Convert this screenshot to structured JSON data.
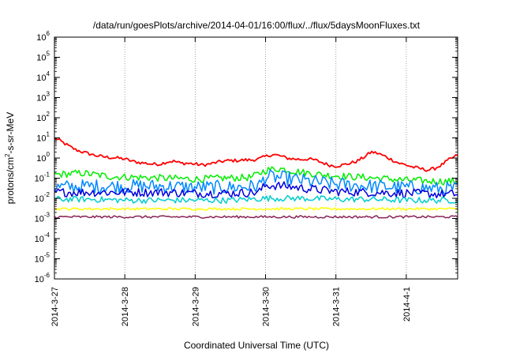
{
  "chart_data": {
    "type": "line",
    "title": "/data/run/goesPlots/archive/2014-04-01/16:00/flux/../flux/5daysMoonFluxes.txt",
    "xlabel": "Coordinated Universal Time (UTC)",
    "ylabel": "protons/cm2-s-sr-MeV",
    "ylabel_parts": {
      "before": "protons/cm",
      "sup": "2",
      "after": "-s-sr-MeV"
    },
    "yscale": "log",
    "ylim_exponents": [
      -6,
      6
    ],
    "xlim_days": [
      0,
      5.73
    ],
    "x_ticks": [
      {
        "day": 0,
        "label": "2014-3-27"
      },
      {
        "day": 1,
        "label": "2014-3-28"
      },
      {
        "day": 2,
        "label": "2014-3-29"
      },
      {
        "day": 3,
        "label": "2014-3-30"
      },
      {
        "day": 4,
        "label": "2014-3-31"
      },
      {
        "day": 5,
        "label": "2014-4-1"
      }
    ],
    "y_ticks": [
      {
        "exp": 6,
        "base": "10",
        "sup": "6"
      },
      {
        "exp": 5,
        "base": "10",
        "sup": "5"
      },
      {
        "exp": 4,
        "base": "10",
        "sup": "4"
      },
      {
        "exp": 3,
        "base": "10",
        "sup": "3"
      },
      {
        "exp": 2,
        "base": "10",
        "sup": "2"
      },
      {
        "exp": 1,
        "base": "10",
        "sup": "1"
      },
      {
        "exp": 0,
        "base": "10",
        "sup": "0"
      },
      {
        "exp": -1,
        "base": "10",
        "sup": "-1"
      },
      {
        "exp": -2,
        "base": "10",
        "sup": "-2"
      },
      {
        "exp": -3,
        "base": "10",
        "sup": "-3"
      },
      {
        "exp": -4,
        "base": "10",
        "sup": "-4"
      },
      {
        "exp": -5,
        "base": "10",
        "sup": "-5"
      },
      {
        "exp": -6,
        "base": "10",
        "sup": "-6"
      }
    ],
    "grid": true,
    "series": [
      {
        "color": "#ff0000",
        "x": [
          0,
          0.1,
          0.2,
          0.3,
          0.4,
          0.5,
          0.6,
          0.7,
          0.8,
          0.9,
          1.0,
          1.1,
          1.2,
          1.3,
          1.4,
          1.5,
          1.6,
          1.7,
          1.8,
          1.9,
          2.0,
          2.1,
          2.2,
          2.3,
          2.4,
          2.5,
          2.6,
          2.7,
          2.8,
          2.9,
          3.0,
          3.1,
          3.2,
          3.3,
          3.4,
          3.5,
          3.6,
          3.7,
          3.8,
          3.9,
          4.0,
          4.1,
          4.2,
          4.3,
          4.4,
          4.5,
          4.6,
          4.7,
          4.8,
          4.9,
          5.0,
          5.1,
          5.2,
          5.3,
          5.4,
          5.5,
          5.6,
          5.73
        ],
        "y": [
          10,
          6.5,
          4,
          2.6,
          2,
          1.6,
          1.3,
          1.15,
          1.05,
          1.0,
          0.9,
          0.7,
          0.6,
          0.55,
          0.5,
          0.5,
          0.65,
          0.7,
          0.55,
          0.55,
          0.5,
          0.45,
          0.5,
          0.6,
          0.7,
          0.75,
          0.75,
          0.8,
          0.8,
          0.9,
          1.2,
          1.5,
          1.3,
          1.0,
          0.9,
          0.85,
          0.9,
          0.8,
          0.6,
          0.45,
          0.4,
          0.45,
          0.55,
          0.7,
          1.1,
          2.0,
          1.7,
          1.2,
          0.8,
          0.55,
          0.45,
          0.35,
          0.3,
          0.25,
          0.3,
          0.45,
          0.8,
          1.4
        ]
      },
      {
        "color": "#00ee00",
        "x": [
          0,
          0.4,
          0.8,
          1.2,
          1.6,
          2.0,
          2.4,
          2.8,
          3.0,
          3.2,
          3.5,
          3.8,
          4.2,
          4.6,
          5.0,
          5.4,
          5.73
        ],
        "y": [
          0.15,
          0.18,
          0.12,
          0.11,
          0.1,
          0.09,
          0.1,
          0.11,
          0.25,
          0.3,
          0.2,
          0.15,
          0.12,
          0.1,
          0.08,
          0.07,
          0.07
        ]
      },
      {
        "color": "#0088ff",
        "x": [
          0,
          0.5,
          1.0,
          1.5,
          2.0,
          2.5,
          2.9,
          3.0,
          3.3,
          3.6,
          4.0,
          4.5,
          5.0,
          5.5,
          5.73
        ],
        "y": [
          0.035,
          0.04,
          0.04,
          0.04,
          0.035,
          0.035,
          0.04,
          0.12,
          0.1,
          0.07,
          0.05,
          0.04,
          0.035,
          0.03,
          0.03
        ]
      },
      {
        "color": "#0000dd",
        "x": [
          0,
          0.5,
          1.0,
          1.5,
          2.0,
          2.5,
          2.9,
          3.0,
          3.3,
          3.6,
          4.0,
          4.5,
          5.0,
          5.5,
          5.73
        ],
        "y": [
          0.02,
          0.02,
          0.02,
          0.02,
          0.018,
          0.018,
          0.02,
          0.045,
          0.04,
          0.03,
          0.022,
          0.02,
          0.018,
          0.016,
          0.016
        ]
      },
      {
        "color": "#00cccc",
        "x": [
          0,
          0.5,
          1.0,
          1.5,
          2.0,
          2.5,
          3.0,
          3.5,
          4.0,
          4.5,
          5.0,
          5.5,
          5.73
        ],
        "y": [
          0.009,
          0.009,
          0.008,
          0.008,
          0.008,
          0.008,
          0.01,
          0.01,
          0.009,
          0.009,
          0.008,
          0.008,
          0.008
        ]
      },
      {
        "color": "#ffff00",
        "x": [
          0,
          0.5,
          1.0,
          1.5,
          2.0,
          2.5,
          3.0,
          3.5,
          4.0,
          4.5,
          5.0,
          5.5,
          5.73
        ],
        "y": [
          0.003,
          0.003,
          0.003,
          0.003,
          0.003,
          0.003,
          0.003,
          0.003,
          0.003,
          0.003,
          0.003,
          0.003,
          0.003
        ]
      },
      {
        "color": "#882255",
        "x": [
          0,
          0.5,
          1.0,
          1.5,
          2.0,
          2.5,
          3.0,
          3.5,
          4.0,
          4.5,
          5.0,
          5.5,
          5.73
        ],
        "y": [
          0.0012,
          0.0012,
          0.0012,
          0.0012,
          0.0012,
          0.0012,
          0.0012,
          0.0012,
          0.0012,
          0.0012,
          0.0012,
          0.0012,
          0.0012
        ]
      }
    ]
  }
}
